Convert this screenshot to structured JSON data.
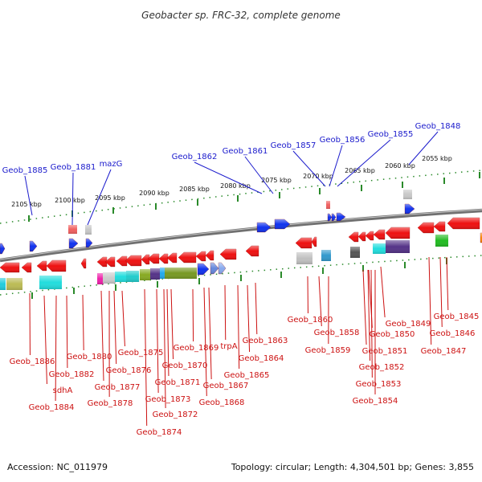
{
  "title": "Geobacter sp. FRC-32, complete genome",
  "footer": {
    "accession": "Accession: NC_011979",
    "summary": "Topology: circular; Length: 4,304,501 bp; Genes: 3,855"
  },
  "colors": {
    "top_label": "#1a1acc",
    "bottom_label": "#cc1111",
    "backbone": "#888888",
    "tick": "#2a8a2a"
  },
  "ruler": [
    "2105 kbp",
    "2100 kbp",
    "2095 kbp",
    "2090 kbp",
    "2085 kbp",
    "2080 kbp",
    "2075 kbp",
    "2070 kbp",
    "2065 kbp",
    "2060 kbp",
    "2055 kbp"
  ],
  "top_labels": [
    "Geob_1885",
    "Geob_1881",
    "mazG",
    "Geob_1862",
    "Geob_1861",
    "Geob_1857",
    "Geob_1856",
    "Geob_1855",
    "Geob_1848"
  ],
  "bottom_labels": [
    "Geob_1886",
    "sdhA",
    "Geob_1884",
    "Geob_1882",
    "Geob_1880",
    "Geob_1877",
    "Geob_1878",
    "Geob_1876",
    "Geob_1875",
    "Geob_1874",
    "Geob_1873",
    "Geob_1872",
    "Geob_1871",
    "Geob_1870",
    "Geob_1869",
    "Geob_1868",
    "Geob_1867",
    "trpA",
    "Geob_1865",
    "Geob_1864",
    "Geob_1863",
    "Geob_1860",
    "Geob_1858",
    "Geob_1859",
    "Geob_1851",
    "Geob_1850",
    "Geob_1852",
    "Geob_1853",
    "Geob_1854",
    "Geob_1849",
    "Geob_1847",
    "Geob_1846",
    "Geob_1845"
  ]
}
